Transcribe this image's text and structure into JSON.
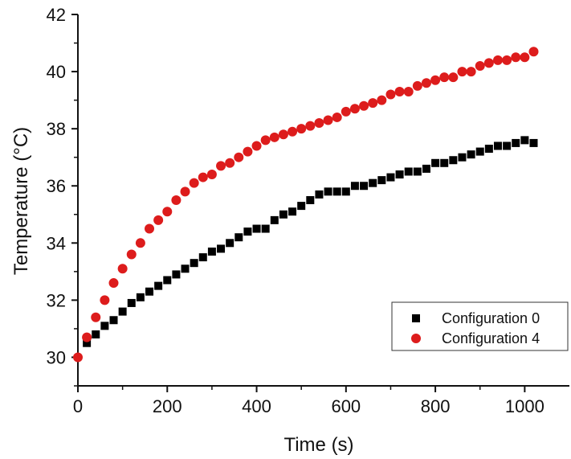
{
  "chart_data": {
    "type": "scatter",
    "xlabel": "Time (s)",
    "ylabel": "Temperature (°C)",
    "xlim": [
      0,
      1100
    ],
    "ylim": [
      29,
      42
    ],
    "x_ticks": [
      0,
      200,
      400,
      600,
      800,
      1000
    ],
    "y_ticks": [
      30,
      32,
      34,
      36,
      38,
      40,
      42
    ],
    "grid": false,
    "legend_position": "bottom-right",
    "series": [
      {
        "name": "Configuration 0",
        "marker": "square",
        "color": "#000000",
        "x": [
          20,
          40,
          60,
          80,
          100,
          120,
          140,
          160,
          180,
          200,
          220,
          240,
          260,
          280,
          300,
          320,
          340,
          360,
          380,
          400,
          420,
          440,
          460,
          480,
          500,
          520,
          540,
          560,
          580,
          600,
          620,
          640,
          660,
          680,
          700,
          720,
          740,
          760,
          780,
          800,
          820,
          840,
          860,
          880,
          900,
          920,
          940,
          960,
          980,
          1000,
          1020
        ],
        "y": [
          30.5,
          30.8,
          31.1,
          31.3,
          31.6,
          31.9,
          32.1,
          32.3,
          32.5,
          32.7,
          32.9,
          33.1,
          33.3,
          33.5,
          33.7,
          33.8,
          34.0,
          34.2,
          34.4,
          34.5,
          34.5,
          34.8,
          35.0,
          35.1,
          35.3,
          35.5,
          35.7,
          35.8,
          35.8,
          35.8,
          36.0,
          36.0,
          36.1,
          36.2,
          36.3,
          36.4,
          36.5,
          36.5,
          36.6,
          36.8,
          36.8,
          36.9,
          37.0,
          37.1,
          37.2,
          37.3,
          37.4,
          37.4,
          37.5,
          37.6,
          37.5
        ]
      },
      {
        "name": "Configuration 4",
        "marker": "circle",
        "color": "#dd1c1c",
        "x": [
          0,
          20,
          40,
          60,
          80,
          100,
          120,
          140,
          160,
          180,
          200,
          220,
          240,
          260,
          280,
          300,
          320,
          340,
          360,
          380,
          400,
          420,
          440,
          460,
          480,
          500,
          520,
          540,
          560,
          580,
          600,
          620,
          640,
          660,
          680,
          700,
          720,
          740,
          760,
          780,
          800,
          820,
          840,
          860,
          880,
          900,
          920,
          940,
          960,
          980,
          1000,
          1020
        ],
        "y": [
          30.0,
          30.7,
          31.4,
          32.0,
          32.6,
          33.1,
          33.6,
          34.0,
          34.5,
          34.8,
          35.1,
          35.5,
          35.8,
          36.1,
          36.3,
          36.4,
          36.7,
          36.8,
          37.0,
          37.2,
          37.4,
          37.6,
          37.7,
          37.8,
          37.9,
          38.0,
          38.1,
          38.2,
          38.3,
          38.4,
          38.6,
          38.7,
          38.8,
          38.9,
          39.0,
          39.2,
          39.3,
          39.3,
          39.5,
          39.6,
          39.7,
          39.8,
          39.8,
          40.0,
          40.0,
          40.2,
          40.3,
          40.4,
          40.4,
          40.5,
          40.5,
          40.7
        ]
      }
    ]
  }
}
